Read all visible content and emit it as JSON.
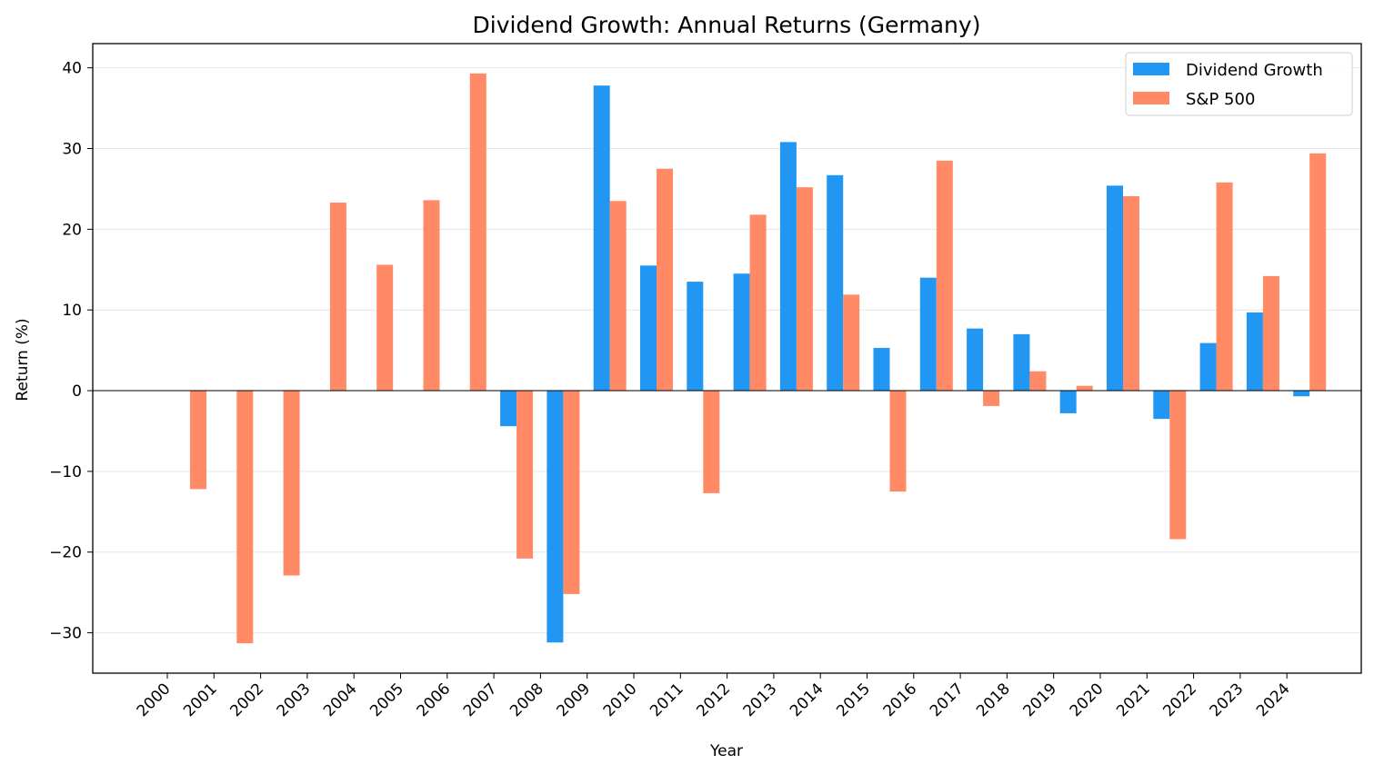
{
  "chart_data": {
    "type": "bar",
    "title": "Dividend Growth: Annual Returns (Germany)",
    "xlabel": "Year",
    "ylabel": "Return (%)",
    "ylim": [
      -35,
      43
    ],
    "yticks": [
      -30,
      -20,
      -10,
      0,
      10,
      20,
      30,
      40
    ],
    "grid": "y",
    "legend_position": "top-right",
    "categories": [
      "2000",
      "2001",
      "2002",
      "2003",
      "2004",
      "2005",
      "2006",
      "2007",
      "2008",
      "2009",
      "2010",
      "2011",
      "2012",
      "2013",
      "2014",
      "2015",
      "2016",
      "2017",
      "2018",
      "2019",
      "2020",
      "2021",
      "2022",
      "2023",
      "2024"
    ],
    "series": [
      {
        "name": "Dividend Growth",
        "color": "#2196F3",
        "values": [
          null,
          null,
          null,
          null,
          null,
          null,
          null,
          -4.4,
          -31.2,
          37.8,
          15.5,
          13.5,
          14.5,
          30.8,
          26.7,
          5.3,
          14.0,
          7.7,
          7.0,
          -2.8,
          25.4,
          -3.5,
          5.9,
          9.7,
          -0.7
        ]
      },
      {
        "name": "S&P 500",
        "color": "#FF8A65",
        "values": [
          -12.2,
          -31.3,
          -22.9,
          23.3,
          15.6,
          23.6,
          39.3,
          -20.8,
          -25.2,
          23.5,
          27.5,
          -12.7,
          21.8,
          25.2,
          11.9,
          -12.5,
          28.5,
          -1.9,
          2.4,
          0.6,
          24.1,
          -18.4,
          25.8,
          14.2,
          29.4
        ]
      }
    ]
  }
}
